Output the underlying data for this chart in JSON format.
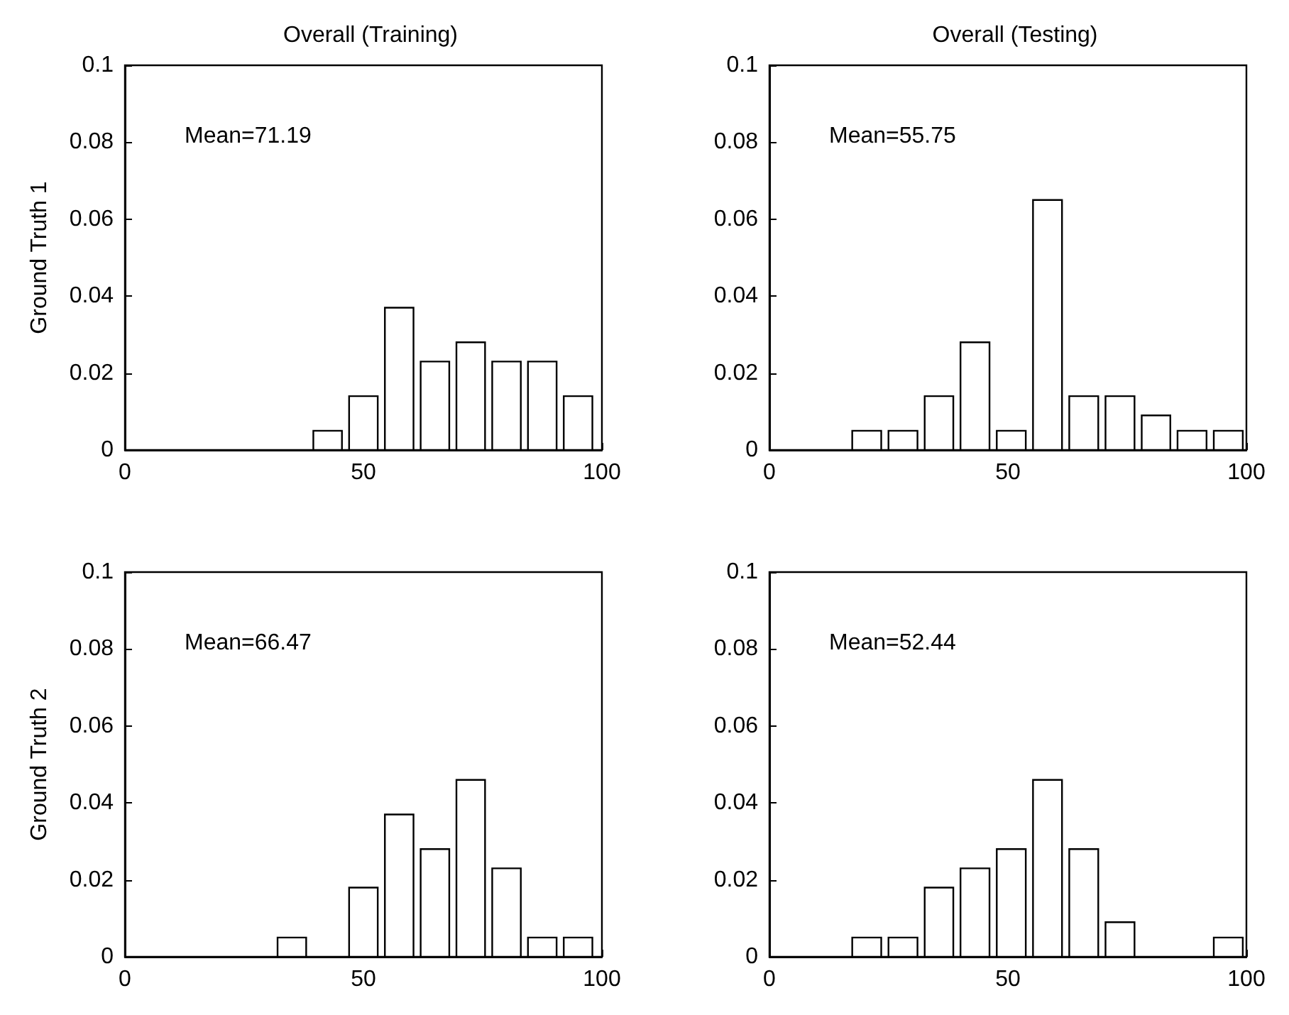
{
  "chart_data": [
    {
      "type": "histogram",
      "title": "Overall (Training)",
      "ylabel": "Ground Truth 1",
      "color": "#ffffff",
      "bins": [
        38.75,
        46.25,
        53.75,
        61.25,
        68.75,
        76.25,
        83.75,
        91.25,
        98.75
      ],
      "values": [
        0.005,
        0.014,
        0.037,
        0.023,
        0.028,
        0.023,
        0.023,
        0.014
      ],
      "xlim": [
        0,
        100
      ],
      "xticks": [
        0,
        50,
        100
      ],
      "ylim": [
        0,
        0.1
      ],
      "yticks": [
        0,
        0.02,
        0.04,
        0.06,
        0.08,
        0.1
      ],
      "annotations": [
        "Mean=71.19"
      ]
    },
    {
      "type": "histogram",
      "title": "Overall (Testing)",
      "color": "#ffffff",
      "bins": [
        16.6,
        24.2,
        31.8,
        39.3,
        46.9,
        54.5,
        62.1,
        69.7,
        77.3,
        84.8,
        92.4,
        100
      ],
      "values": [
        0.005,
        0.005,
        0.014,
        0.028,
        0.005,
        0.065,
        0.014,
        0.014,
        0.009,
        0.005,
        0.005
      ],
      "xlim": [
        0,
        100
      ],
      "xticks": [
        0,
        50,
        100
      ],
      "ylim": [
        0,
        0.1
      ],
      "yticks": [
        0,
        0.02,
        0.04,
        0.06,
        0.08,
        0.1
      ],
      "annotations": [
        "Mean=55.75"
      ]
    },
    {
      "type": "histogram",
      "ylabel": "Ground Truth 2",
      "color": "#ffffff",
      "bins": [
        31.25,
        38.75,
        46.25,
        53.75,
        61.25,
        68.75,
        76.25,
        83.75,
        91.25,
        98.75
      ],
      "values": [
        0.005,
        0,
        0.018,
        0.037,
        0.028,
        0.046,
        0.023,
        0.005,
        0.005
      ],
      "xlim": [
        0,
        100
      ],
      "xticks": [
        0,
        50,
        100
      ],
      "ylim": [
        0,
        0.1
      ],
      "yticks": [
        0,
        0.02,
        0.04,
        0.06,
        0.08,
        0.1
      ],
      "annotations": [
        "Mean=66.47"
      ]
    },
    {
      "type": "histogram",
      "color": "#ffffff",
      "bins": [
        16.6,
        24.2,
        31.8,
        39.3,
        46.9,
        54.5,
        62.1,
        69.7,
        77.3,
        92.4,
        100
      ],
      "values": [
        0.005,
        0.005,
        0.018,
        0.023,
        0.028,
        0.046,
        0.028,
        0.009,
        0,
        0.005
      ],
      "xlim": [
        0,
        100
      ],
      "xticks": [
        0,
        50,
        100
      ],
      "ylim": [
        0,
        0.1
      ],
      "yticks": [
        0,
        0.02,
        0.04,
        0.06,
        0.08,
        0.1
      ],
      "annotations": [
        "Mean=52.44"
      ]
    }
  ]
}
